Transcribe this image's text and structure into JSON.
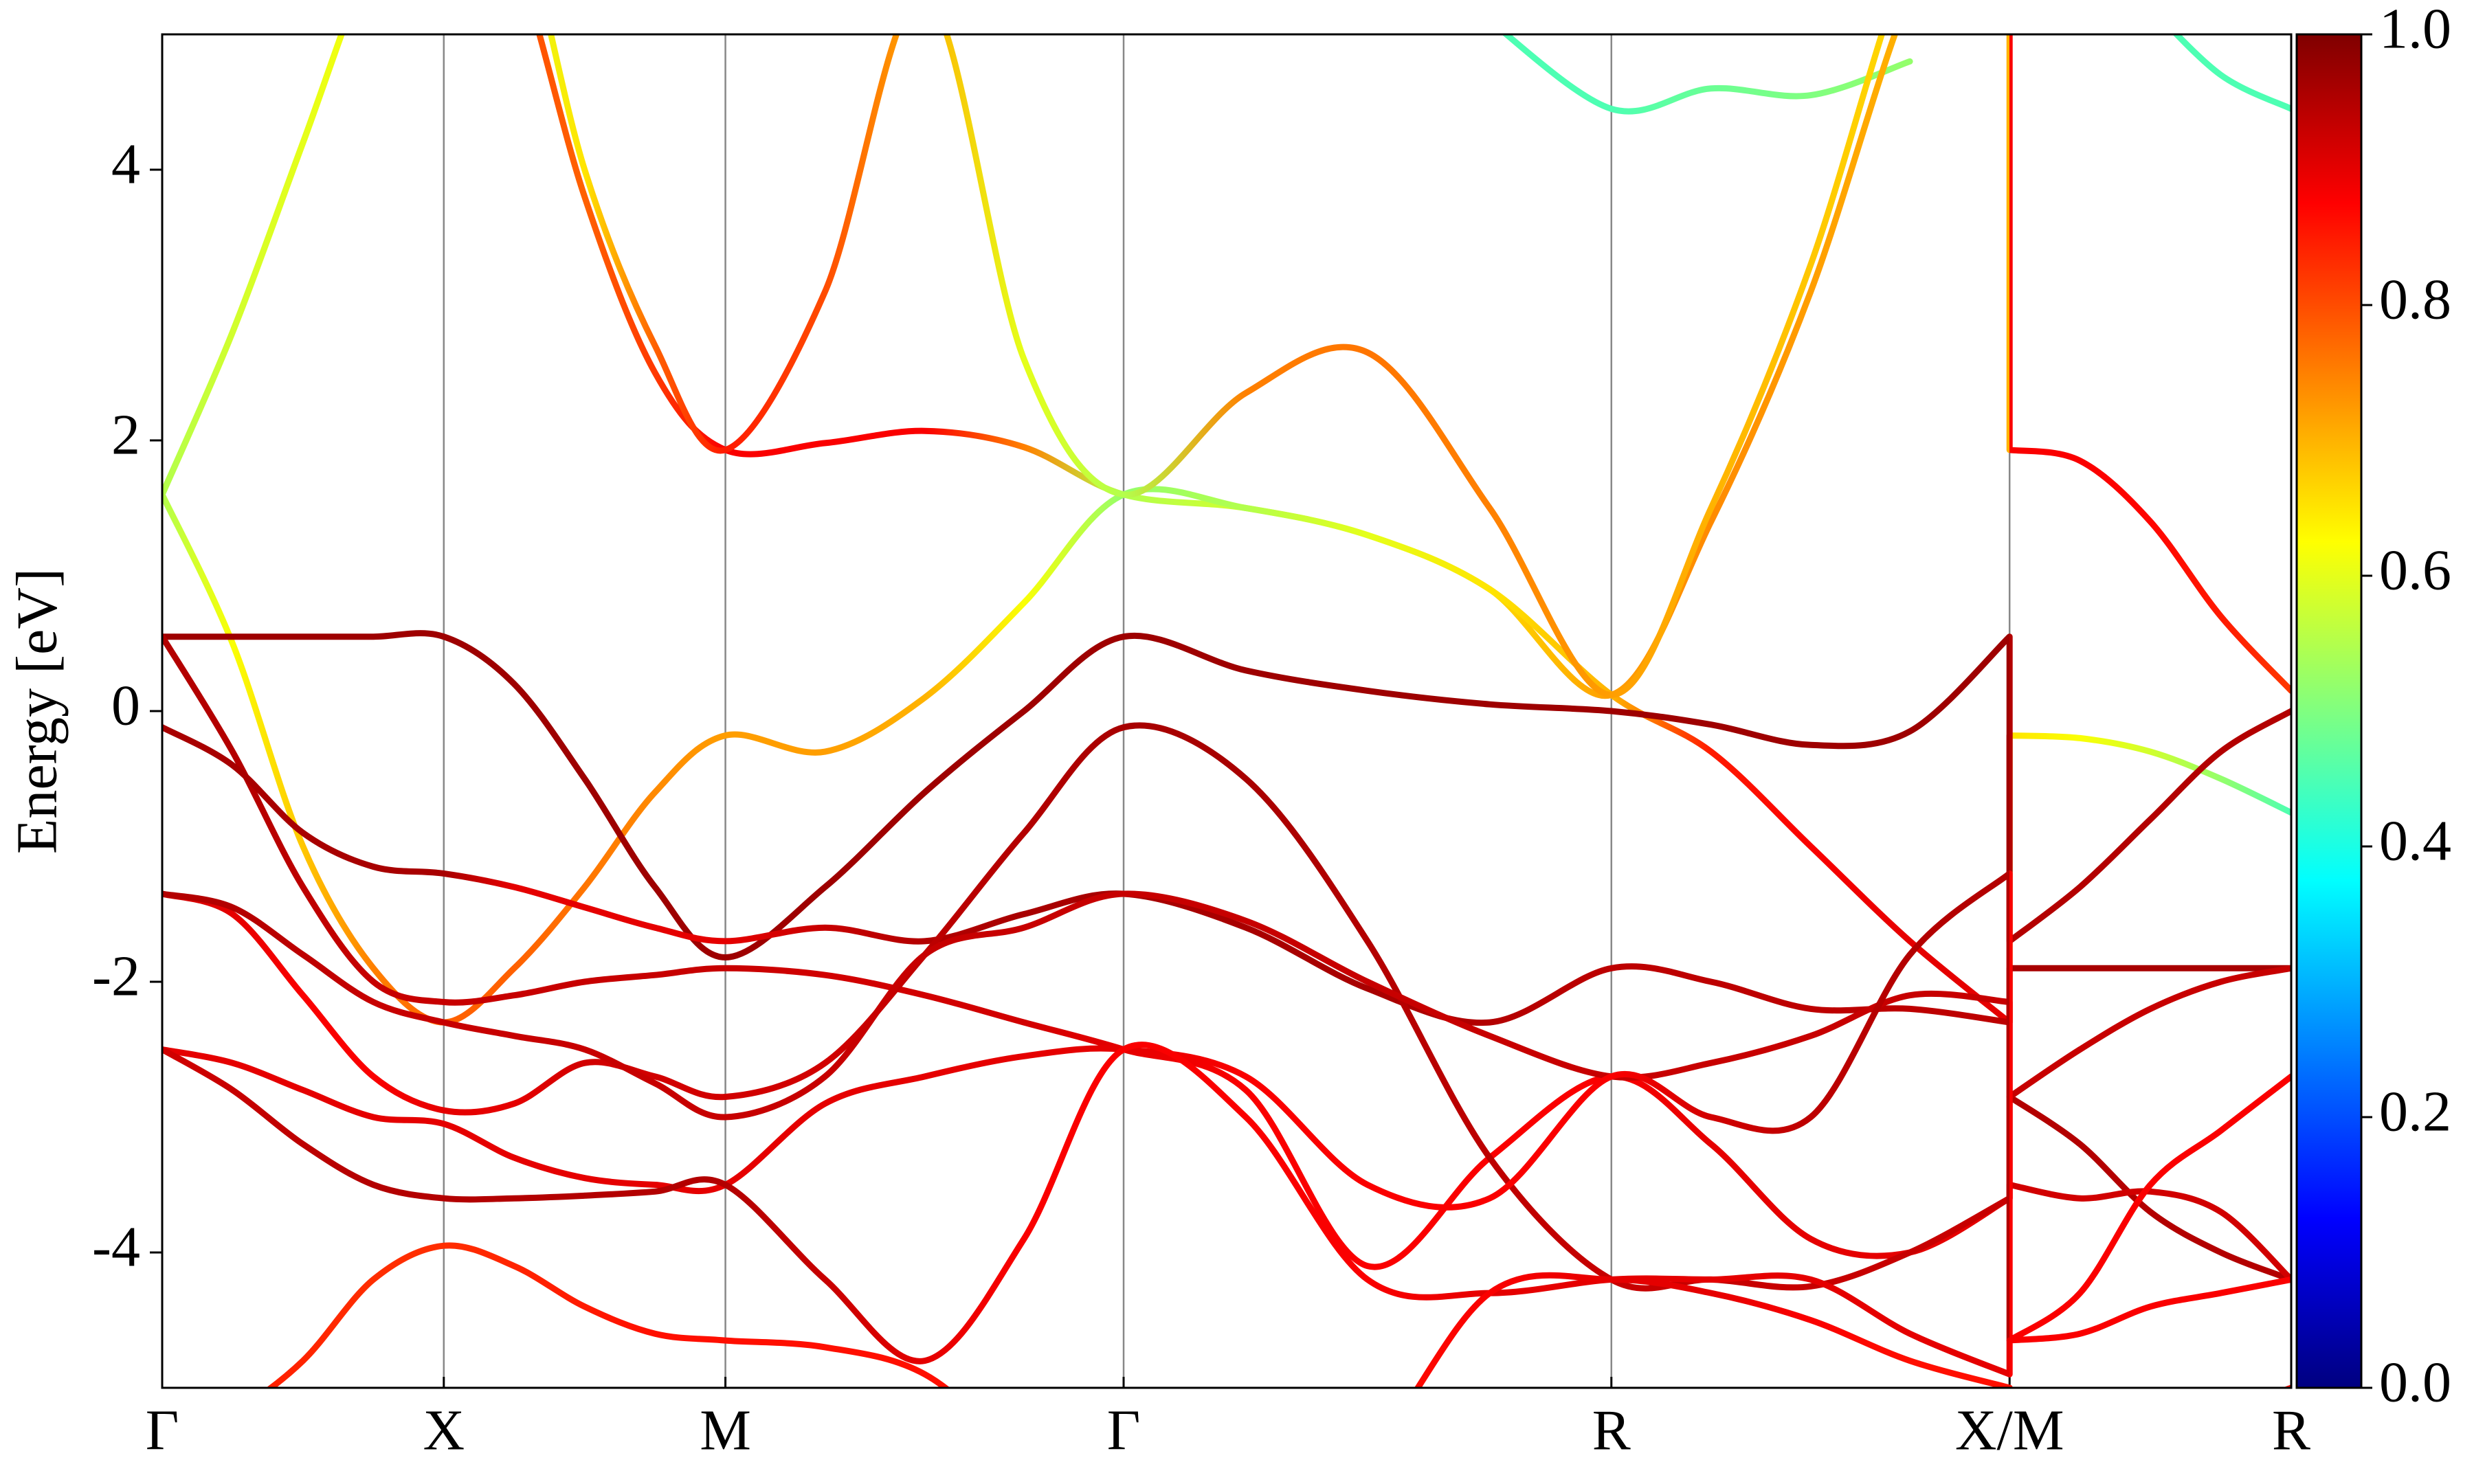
{
  "chart_data": {
    "type": "band-structure",
    "ylabel": "Energy [eV]",
    "x": [
      0,
      0.125,
      0.25,
      0.375,
      0.5,
      0.625,
      0.75,
      0.875,
      1.0,
      1.177,
      1.354,
      1.53,
      1.707,
      1.924,
      2.14,
      2.357,
      2.573,
      2.75,
      2.927,
      3.103,
      3.28,
      3.28,
      3.405,
      3.53,
      3.655,
      3.78
    ],
    "xlim": [
      0,
      3.78
    ],
    "xticks": [
      {
        "value": 0,
        "label": "Γ"
      },
      {
        "value": 0.5,
        "label": "X"
      },
      {
        "value": 1.0,
        "label": "M"
      },
      {
        "value": 1.707,
        "label": "Γ"
      },
      {
        "value": 2.573,
        "label": "R"
      },
      {
        "value": 3.28,
        "label": "X/M"
      },
      {
        "value": 3.78,
        "label": "R"
      }
    ],
    "ylim": [
      -5,
      5
    ],
    "yticks": [
      -4,
      -2,
      0,
      2,
      4
    ],
    "grid": true,
    "colormap": "jet",
    "colorbar": {
      "lim": [
        0,
        1
      ],
      "ticks": [
        {
          "value": 0,
          "label": "0.0"
        },
        {
          "value": 0.2,
          "label": "0.2"
        },
        {
          "value": 0.4,
          "label": "0.4"
        },
        {
          "value": 0.6,
          "label": "0.6"
        },
        {
          "value": 0.8,
          "label": "0.8"
        },
        {
          "value": 1,
          "label": "1.0"
        }
      ]
    },
    "series": [
      {
        "values": [
          null,
          null,
          null,
          null,
          null,
          null,
          null,
          null,
          null,
          null,
          null,
          null,
          null,
          null,
          null,
          5.1,
          4.45,
          4.6,
          4.55,
          4.8,
          null,
          null,
          null,
          5.2,
          4.7,
          4.45
        ],
        "weights": [
          0.45,
          0.45,
          0.45,
          0.45,
          0.45,
          0.45,
          0.45,
          0.45,
          0.45,
          0.45,
          0.45,
          0.45,
          0.45,
          0.45,
          0.45,
          0.45,
          0.45,
          0.48,
          0.5,
          0.52,
          0.45,
          0.45,
          0.45,
          0.45,
          0.45,
          0.45
        ]
      },
      {
        "values": [
          1.6,
          2.8,
          4.2,
          5.6,
          6.5,
          5.6,
          3.8,
          2.5,
          1.93,
          1.98,
          2.07,
          1.95,
          1.6,
          1.5,
          1.3,
          0.9,
          0.12,
          1.4,
          3.1,
          5.3,
          6.8,
          1.93,
          1.85,
          1.4,
          0.7,
          0.15
        ],
        "weights": [
          0.55,
          0.58,
          0.6,
          0.62,
          0.65,
          0.8,
          0.78,
          0.82,
          0.88,
          0.88,
          0.88,
          0.75,
          0.55,
          0.58,
          0.62,
          0.66,
          0.72,
          0.74,
          0.72,
          0.7,
          0.7,
          0.88,
          0.88,
          0.87,
          0.85,
          0.82
        ]
      },
      {
        "values": [
          1.6,
          0.5,
          -1.0,
          -1.9,
          -2.3,
          -1.9,
          -1.3,
          -0.6,
          -0.18,
          -0.3,
          0.1,
          0.8,
          1.6,
          1.5,
          1.3,
          0.9,
          0.12,
          -0.3,
          -1.0,
          -1.7,
          -2.3,
          -0.18,
          -0.2,
          -0.3,
          -0.5,
          -0.75
        ],
        "weights": [
          0.55,
          0.62,
          0.68,
          0.75,
          0.78,
          0.78,
          0.76,
          0.74,
          0.72,
          0.72,
          0.7,
          0.62,
          0.52,
          0.55,
          0.6,
          0.65,
          0.7,
          0.85,
          0.88,
          0.9,
          0.9,
          0.65,
          0.62,
          0.58,
          0.52,
          0.45
        ]
      },
      {
        "values": [
          1.6,
          2.8,
          4.2,
          5.6,
          6.5,
          6.0,
          4.0,
          2.7,
          1.93,
          3.1,
          5.3,
          2.6,
          1.6,
          2.35,
          2.65,
          1.5,
          0.12,
          1.5,
          3.3,
          5.6,
          7.0,
          null,
          null,
          null,
          null,
          null
        ],
        "weights": [
          0.55,
          0.58,
          0.6,
          0.62,
          0.65,
          0.6,
          0.65,
          0.78,
          0.85,
          0.8,
          0.7,
          0.6,
          0.55,
          0.75,
          0.76,
          0.75,
          0.72,
          0.7,
          0.68,
          0.66,
          0.66,
          0.7,
          0.7,
          0.7,
          0.7,
          0.7
        ]
      },
      {
        "values": [
          0.55,
          0.55,
          0.55,
          0.55,
          0.55,
          0.2,
          -0.5,
          -1.3,
          -1.82,
          -1.3,
          -0.6,
          0.0,
          0.55,
          0.3,
          0.15,
          0.05,
          0.0,
          -0.1,
          -0.25,
          -0.15,
          0.55,
          -1.7,
          -1.3,
          -0.8,
          -0.3,
          0.0
        ],
        "weights": [
          0.97,
          0.97,
          0.97,
          0.97,
          0.97,
          0.97,
          0.97,
          0.97,
          0.97,
          0.97,
          0.97,
          0.97,
          0.97,
          0.97,
          0.97,
          0.97,
          0.97,
          0.97,
          0.97,
          0.97,
          0.97,
          0.95,
          0.95,
          0.95,
          0.95,
          0.95
        ]
      },
      {
        "values": [
          0.55,
          -0.3,
          -1.3,
          -2.0,
          -2.15,
          -2.1,
          -2.0,
          -1.95,
          -1.9,
          -1.95,
          -2.1,
          -2.3,
          -2.5,
          -2.8,
          -4.1,
          -3.3,
          -2.7,
          -3.2,
          -3.9,
          -4.0,
          -3.6,
          -2.85,
          -3.2,
          -3.7,
          -4.0,
          -4.2
        ],
        "weights": [
          0.95,
          0.95,
          0.94,
          0.93,
          0.93,
          0.93,
          0.93,
          0.93,
          0.93,
          0.92,
          0.92,
          0.92,
          0.9,
          0.88,
          0.88,
          0.88,
          0.88,
          0.9,
          0.9,
          0.9,
          0.9,
          0.95,
          0.95,
          0.95,
          0.95,
          0.95
        ]
      },
      {
        "values": [
          -0.12,
          -0.4,
          -0.9,
          -1.15,
          -1.2,
          -1.3,
          -1.45,
          -1.6,
          -1.7,
          -1.6,
          -1.7,
          -1.5,
          -1.35,
          -1.6,
          -2.05,
          -2.3,
          -1.9,
          -2.0,
          -2.2,
          -2.2,
          -2.3,
          -1.9,
          -1.9,
          -1.9,
          -1.9,
          -1.9
        ],
        "weights": [
          0.96,
          0.96,
          0.96,
          0.96,
          0.96,
          0.9,
          0.9,
          0.9,
          0.9,
          0.93,
          0.95,
          0.96,
          0.96,
          0.96,
          0.96,
          0.95,
          0.94,
          0.94,
          0.94,
          0.94,
          0.94,
          0.96,
          0.96,
          0.96,
          0.96,
          0.96
        ]
      },
      {
        "values": [
          -1.35,
          -1.5,
          -2.1,
          -2.7,
          -2.95,
          -2.9,
          -2.6,
          -2.7,
          -2.85,
          -2.6,
          -1.8,
          -0.9,
          -0.12,
          -0.5,
          -1.7,
          -3.3,
          -4.2,
          -4.2,
          -4.25,
          -4.0,
          -3.6,
          -3.5,
          -3.6,
          -3.55,
          -3.7,
          -4.2
        ],
        "weights": [
          0.92,
          0.9,
          0.88,
          0.88,
          0.9,
          0.9,
          0.92,
          0.92,
          0.92,
          0.92,
          0.94,
          0.95,
          0.96,
          0.96,
          0.95,
          0.94,
          0.93,
          0.93,
          0.93,
          0.93,
          0.93,
          0.92,
          0.92,
          0.92,
          0.92,
          0.92
        ]
      },
      {
        "values": [
          -1.35,
          -1.45,
          -1.8,
          -2.15,
          -2.3,
          -2.4,
          -2.5,
          -2.75,
          -3.0,
          -2.7,
          -1.8,
          -1.6,
          -1.35,
          -1.55,
          -2.0,
          -2.4,
          -2.7,
          -2.6,
          -2.4,
          -2.1,
          -2.15,
          -2.85,
          -2.5,
          -2.2,
          -2.0,
          -1.9
        ],
        "weights": [
          0.95,
          0.95,
          0.94,
          0.93,
          0.93,
          0.93,
          0.93,
          0.93,
          0.93,
          0.93,
          0.93,
          0.93,
          0.93,
          0.93,
          0.93,
          0.93,
          0.93,
          0.93,
          0.93,
          0.93,
          0.93,
          0.93,
          0.93,
          0.93,
          0.93,
          0.93
        ]
      },
      {
        "values": [
          -2.5,
          -2.6,
          -2.8,
          -3.0,
          -3.05,
          -3.3,
          -3.45,
          -3.5,
          -3.5,
          -2.9,
          -2.7,
          -2.55,
          -2.5,
          -2.7,
          -3.5,
          -3.6,
          -2.7,
          -3.0,
          -3.0,
          -1.8,
          -1.2,
          -4.65,
          -4.3,
          -3.5,
          -3.1,
          -2.7
        ],
        "weights": [
          0.9,
          0.9,
          0.9,
          0.9,
          0.9,
          0.9,
          0.9,
          0.9,
          0.9,
          0.9,
          0.9,
          0.9,
          0.9,
          0.88,
          0.88,
          0.88,
          0.88,
          0.92,
          0.94,
          0.95,
          0.95,
          0.88,
          0.88,
          0.88,
          0.88,
          0.88
        ]
      },
      {
        "values": [
          -2.5,
          -2.8,
          -3.2,
          -3.5,
          -3.6,
          -3.6,
          -3.58,
          -3.55,
          -3.5,
          -4.2,
          -4.8,
          -3.9,
          -2.5,
          -3.0,
          -4.2,
          -4.3,
          -4.2,
          -4.2,
          -4.2,
          -4.6,
          -4.9,
          -4.65,
          -4.6,
          -4.4,
          -4.3,
          -4.2
        ],
        "weights": [
          0.92,
          0.93,
          0.94,
          0.95,
          0.95,
          0.95,
          0.95,
          0.95,
          0.95,
          0.93,
          0.9,
          0.88,
          0.88,
          0.88,
          0.88,
          0.9,
          0.9,
          0.9,
          0.9,
          0.9,
          0.9,
          0.88,
          0.88,
          0.88,
          0.88,
          0.88
        ]
      },
      {
        "values": [
          -5.5,
          -5.2,
          -4.8,
          -4.2,
          -3.95,
          -4.1,
          -4.4,
          -4.6,
          -4.65,
          -4.7,
          -4.9,
          -5.5,
          -6.0,
          -6.0,
          -5.5,
          -4.3,
          -4.2,
          -4.3,
          -4.5,
          -4.8,
          -5.0,
          -5.2,
          -5.5,
          -5.5,
          -5.2,
          -5.0
        ],
        "weights": [
          0.85,
          0.85,
          0.84,
          0.83,
          0.83,
          0.84,
          0.85,
          0.86,
          0.86,
          0.86,
          0.86,
          0.86,
          0.86,
          0.86,
          0.86,
          0.88,
          0.9,
          0.9,
          0.88,
          0.86,
          0.86,
          0.86,
          0.86,
          0.86,
          0.86,
          0.86
        ]
      }
    ]
  }
}
